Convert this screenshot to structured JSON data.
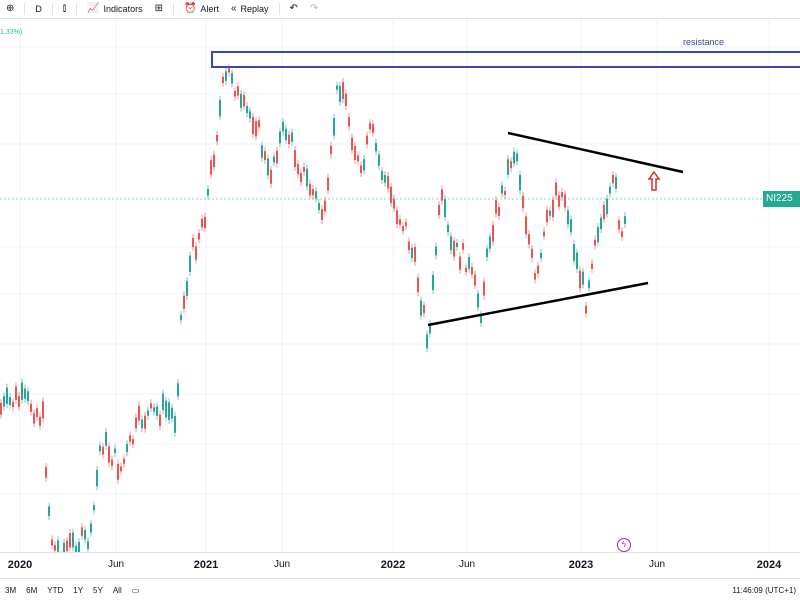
{
  "toolbar": {
    "interval": "D",
    "indicators_label": "Indicators",
    "alert_label": "Alert",
    "replay_label": "Replay"
  },
  "chart": {
    "percent_change": "1.33%)",
    "symbol_label": "NI225",
    "annotation": "resistance",
    "colors": {
      "up": "#26a69a",
      "down": "#ef5350",
      "resistance_box": "#3949ab",
      "trend_lines": "#000000",
      "arrow": "#d32f2f",
      "price_label": "#22ab94"
    }
  },
  "xaxis": {
    "ticks": [
      {
        "label": "2020",
        "year": true
      },
      {
        "label": "Jun",
        "year": false
      },
      {
        "label": "2021",
        "year": true
      },
      {
        "label": "Jun",
        "year": false
      },
      {
        "label": "2022",
        "year": true
      },
      {
        "label": "Jun",
        "year": false
      },
      {
        "label": "2023",
        "year": true
      },
      {
        "label": "Jun",
        "year": false
      },
      {
        "label": "2024",
        "year": true
      }
    ]
  },
  "bottombar": {
    "ranges": [
      "3M",
      "6M",
      "YTD",
      "1Y",
      "5Y",
      "All"
    ],
    "clock": "11:46:09 (UTC+1)"
  }
}
